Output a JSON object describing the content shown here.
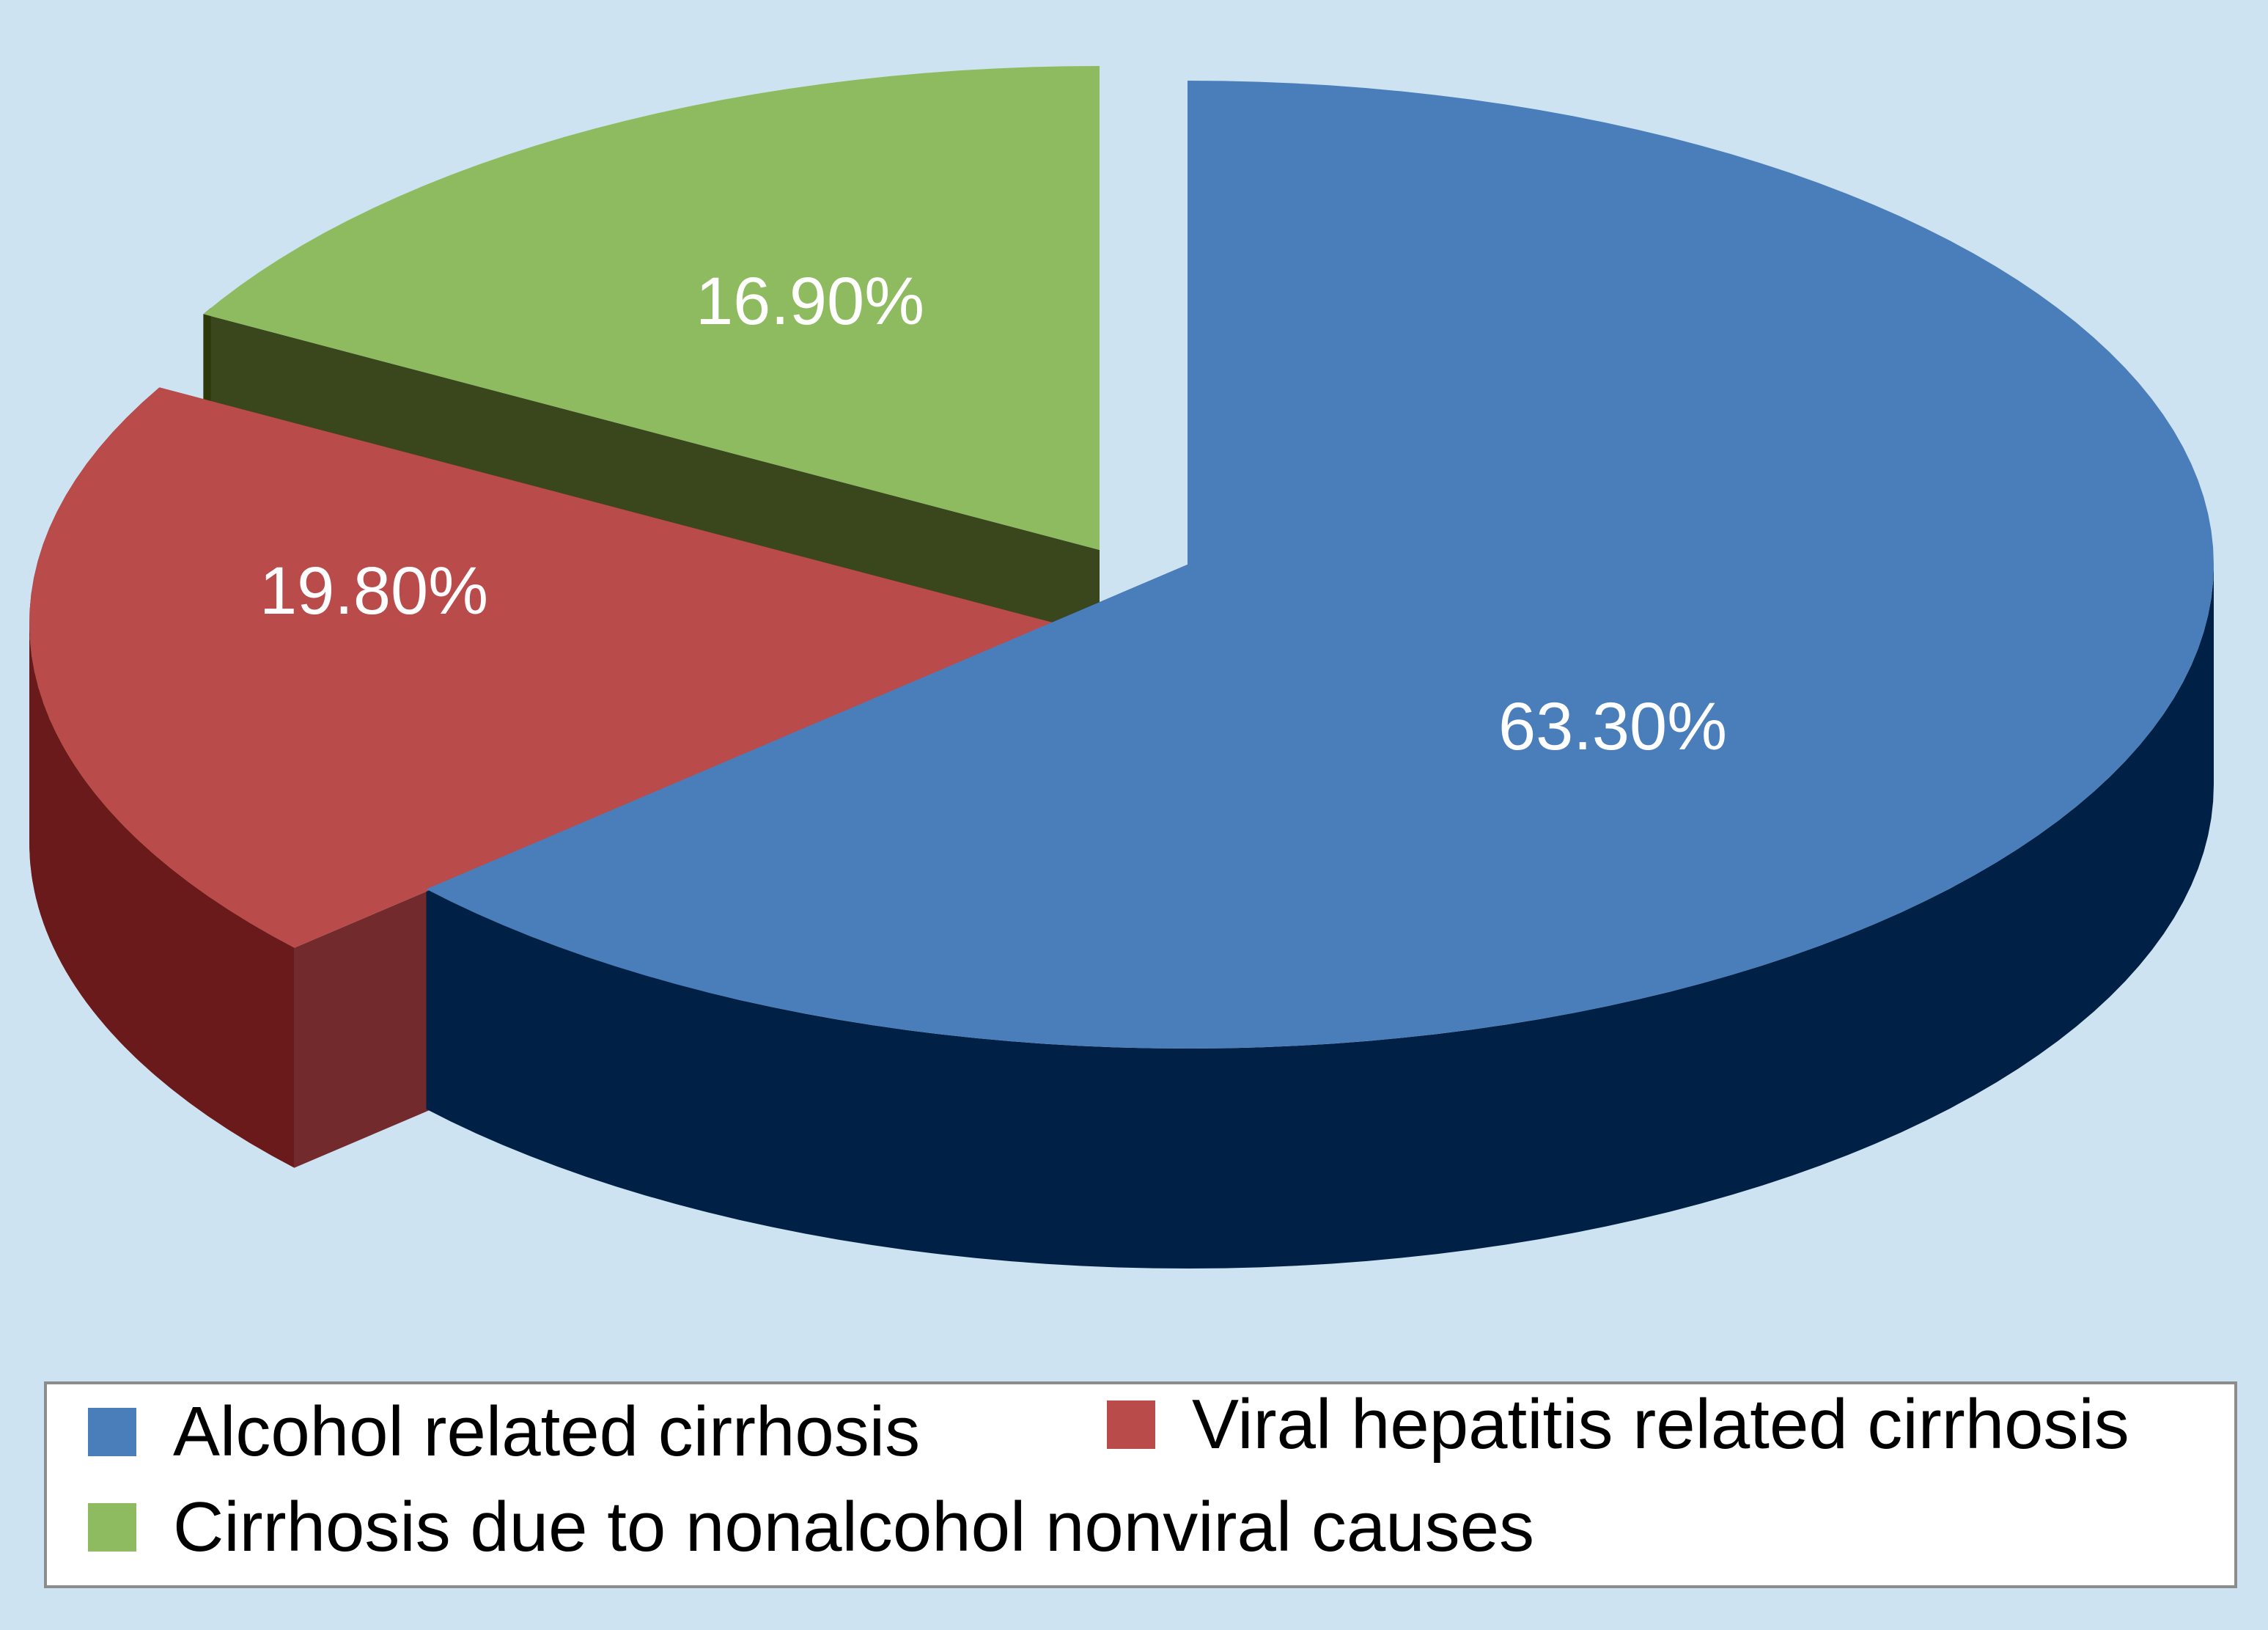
{
  "chart_data": {
    "type": "pie",
    "style": "3d-exploded",
    "title": "",
    "legend_placement": "bottom",
    "slices": [
      {
        "label": "Alcohol related cirrhosis",
        "value": 63.3,
        "display": "63.30%",
        "color": "#4a7ebb",
        "side_color": "#002145"
      },
      {
        "label": "Viral hepatitis related cirrhosis",
        "value": 19.8,
        "display": "19.80%",
        "color": "#b94b4a",
        "side_color": "#6b1a1c"
      },
      {
        "label": "Cirrhosis due to nonalcohol nonviral causes",
        "value": 16.9,
        "display": "16.90%",
        "color": "#8fbb60",
        "side_color": "#2e3a0a"
      }
    ]
  }
}
